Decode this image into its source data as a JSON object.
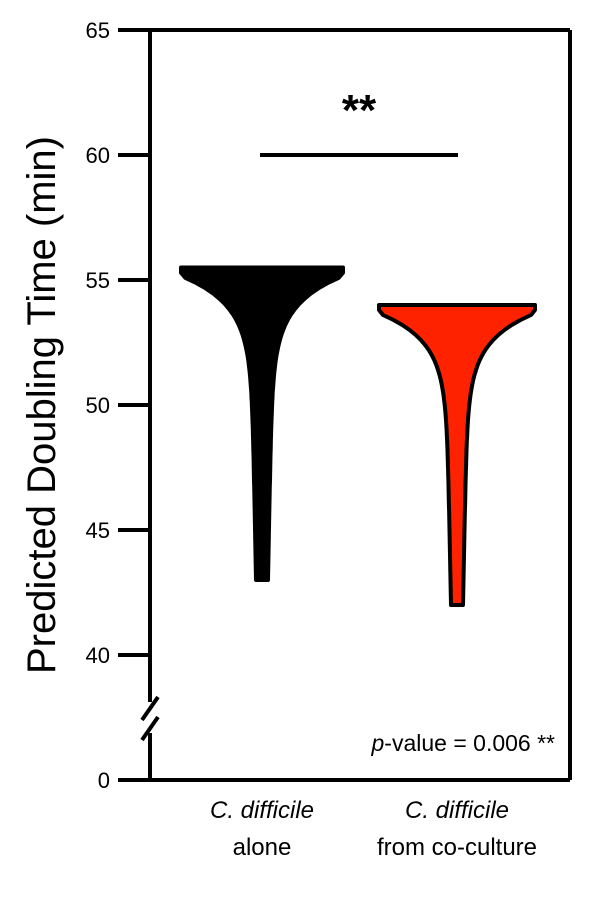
{
  "chart_data": {
    "type": "violin",
    "ylabel": "Predicted Doubling Time (min)",
    "y_ticks": [
      "65",
      "60",
      "55",
      "50",
      "45",
      "40",
      "0"
    ],
    "ylim_upper": [
      38,
      65
    ],
    "axis_break_at": 0,
    "categories": [
      {
        "name_italic": "C. difficile",
        "name_rest": "alone"
      },
      {
        "name_italic": "C. difficile",
        "name_rest": "from co-culture"
      }
    ],
    "series": [
      {
        "min": 43.0,
        "max": 55.5,
        "mode": 55.5,
        "color": "#000000"
      },
      {
        "min": 42.0,
        "max": 54.0,
        "mode": 54.0,
        "color": "#ff2200"
      }
    ],
    "comparison": {
      "bar_y": 60,
      "stars": "**"
    },
    "pvalue": {
      "prefix": "p",
      "text": "-value = 0.006 **"
    },
    "grid": false
  }
}
